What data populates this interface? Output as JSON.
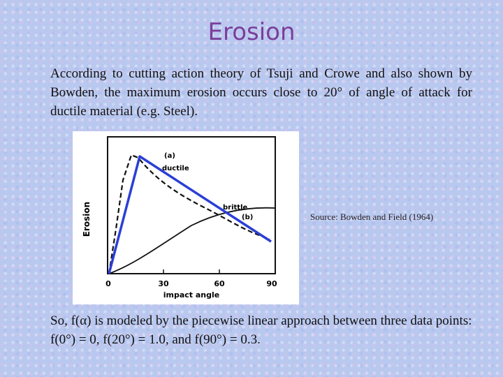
{
  "slide": {
    "title": "Erosion",
    "intro": "According to cutting action theory of Tsuji and Crowe and also shown by Bowden, the maximum erosion occurs close to 20° of angle of attack for ductile material (e.g. Steel).",
    "source": "Source: Bowden and Field (1964)",
    "conclusion": "So, f(α) is modeled by the piecewise linear approach between three data points: f(0°) = 0, f(20°) = 1.0, and f(90°) = 0.3."
  },
  "figure": {
    "ylabel": "Erosion",
    "xlabel": "impact angle",
    "label_a": "(a)",
    "label_ductile": "ductile",
    "label_brittle": "brittle",
    "label_b": "(b)",
    "ticks": [
      "0",
      "30",
      "60",
      "90"
    ],
    "colors": {
      "piecewise_line": "#2b3fd6",
      "curves": "#111111"
    },
    "piecewise_points": [
      {
        "angle": 0,
        "value": 0
      },
      {
        "angle": 20,
        "value": 1.0
      },
      {
        "angle": 90,
        "value": 0.3
      }
    ]
  }
}
